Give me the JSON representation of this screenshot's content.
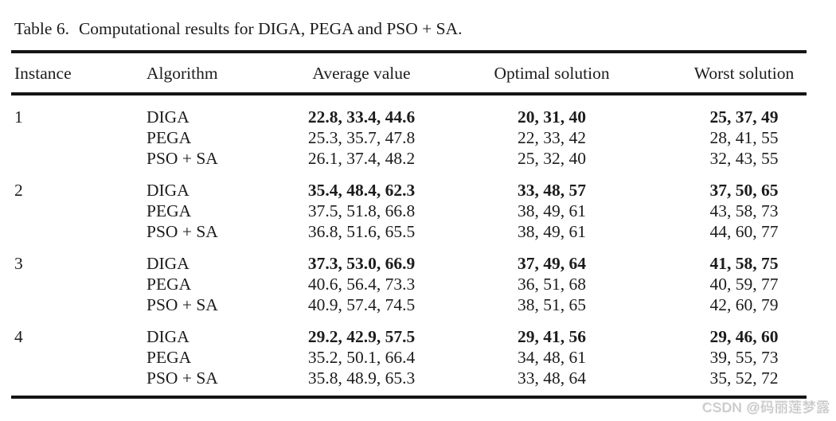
{
  "caption": {
    "label": "Table 6.",
    "text": "Computational results for DIGA, PEGA and PSO + SA."
  },
  "watermark": "CSDN @码丽莲梦露",
  "table": {
    "headers": {
      "instance": "Instance",
      "algorithm": "Algorithm",
      "average": "Average value",
      "optimal": "Optimal solution",
      "worst": "Worst solution"
    },
    "groups": [
      {
        "instance": "1",
        "rows": [
          {
            "algorithm": "DIGA",
            "average": "22.8, 33.4, 44.6",
            "optimal": "20, 31, 40",
            "worst": "25, 37, 49",
            "bold": true
          },
          {
            "algorithm": "PEGA",
            "average": "25.3, 35.7, 47.8",
            "optimal": "22, 33, 42",
            "worst": "28, 41, 55",
            "bold": false
          },
          {
            "algorithm": "PSO + SA",
            "average": "26.1, 37.4, 48.2",
            "optimal": "25, 32, 40",
            "worst": "32, 43, 55",
            "bold": false
          }
        ]
      },
      {
        "instance": "2",
        "rows": [
          {
            "algorithm": "DIGA",
            "average": "35.4, 48.4, 62.3",
            "optimal": "33, 48, 57",
            "worst": "37, 50, 65",
            "bold": true
          },
          {
            "algorithm": "PEGA",
            "average": "37.5, 51.8, 66.8",
            "optimal": "38, 49, 61",
            "worst": "43, 58, 73",
            "bold": false
          },
          {
            "algorithm": "PSO + SA",
            "average": "36.8, 51.6, 65.5",
            "optimal": "38, 49, 61",
            "worst": "44, 60, 77",
            "bold": false
          }
        ]
      },
      {
        "instance": "3",
        "rows": [
          {
            "algorithm": "DIGA",
            "average": "37.3, 53.0, 66.9",
            "optimal": "37, 49, 64",
            "worst": "41, 58, 75",
            "bold": true
          },
          {
            "algorithm": "PEGA",
            "average": "40.6, 56.4, 73.3",
            "optimal": "36, 51, 68",
            "worst": "40, 59, 77",
            "bold": false
          },
          {
            "algorithm": "PSO + SA",
            "average": "40.9, 57.4, 74.5",
            "optimal": "38, 51, 65",
            "worst": "42, 60, 79",
            "bold": false
          }
        ]
      },
      {
        "instance": "4",
        "rows": [
          {
            "algorithm": "DIGA",
            "average": "29.2, 42.9, 57.5",
            "optimal": "29, 41, 56",
            "worst": "29, 46, 60",
            "bold": true
          },
          {
            "algorithm": "PEGA",
            "average": "35.2, 50.1, 66.4",
            "optimal": "34, 48, 61",
            "worst": "39, 55, 73",
            "bold": false
          },
          {
            "algorithm": "PSO + SA",
            "average": "35.8, 48.9, 65.3",
            "optimal": "33, 48, 64",
            "worst": "35, 52, 72",
            "bold": false
          }
        ]
      }
    ]
  }
}
